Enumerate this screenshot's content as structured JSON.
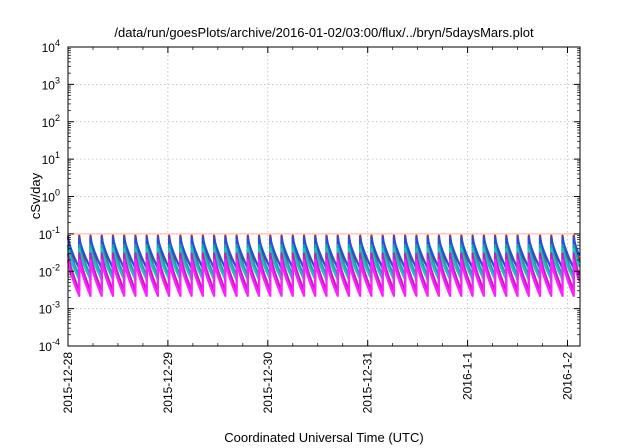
{
  "chart_data": {
    "type": "line",
    "title": "/data/run/goesPlots/archive/2016-01-02/03:00/flux/../bryn/5daysMars.plot",
    "xlabel": "Coordinated Universal Time (UTC)",
    "ylabel": "cSv/day",
    "yscale": "log",
    "ylim": [
      0.0001,
      10000
    ],
    "xlim": [
      "2015-12-28T00:00",
      "2016-01-02T03:00"
    ],
    "grid": true,
    "legend": "none",
    "y_ticks": [
      {
        "value": 0.0001,
        "base": "10",
        "exp": "-4"
      },
      {
        "value": 0.001,
        "base": "10",
        "exp": "-3"
      },
      {
        "value": 0.01,
        "base": "10",
        "exp": "-2"
      },
      {
        "value": 0.1,
        "base": "10",
        "exp": "-1"
      },
      {
        "value": 1,
        "base": "10",
        "exp": "0"
      },
      {
        "value": 10,
        "base": "10",
        "exp": "1"
      },
      {
        "value": 100,
        "base": "10",
        "exp": "2"
      },
      {
        "value": 1000,
        "base": "10",
        "exp": "3"
      },
      {
        "value": 10000,
        "base": "10",
        "exp": "4"
      }
    ],
    "x_ticks": [
      {
        "value": "2015-12-28",
        "label": "2015-12-28"
      },
      {
        "value": "2015-12-29",
        "label": "2015-12-29"
      },
      {
        "value": "2015-12-30",
        "label": "2015-12-30"
      },
      {
        "value": "2015-12-31",
        "label": "2015-12-31"
      },
      {
        "value": "2016-01-01",
        "label": "2016-1-1"
      },
      {
        "value": "2016-01-02",
        "label": "2016-1-2"
      }
    ],
    "reference_line": {
      "y": 0.1,
      "color": "#ff9999"
    },
    "cycle_hours": 2.7,
    "series": [
      {
        "color": "#e01818",
        "peak": 0.09,
        "trough": 0.006
      },
      {
        "color": "#2050e0",
        "peak": 0.08,
        "trough": 0.012
      },
      {
        "color": "#1aa0a8",
        "peak": 0.05,
        "trough": 0.008
      },
      {
        "color": "#20c0c0",
        "peak": 0.04,
        "trough": 0.006
      },
      {
        "color": "#c020c0",
        "peak": 0.03,
        "trough": 0.003
      },
      {
        "color": "#ff20ff",
        "peak": 0.02,
        "trough": 0.0022
      }
    ]
  }
}
